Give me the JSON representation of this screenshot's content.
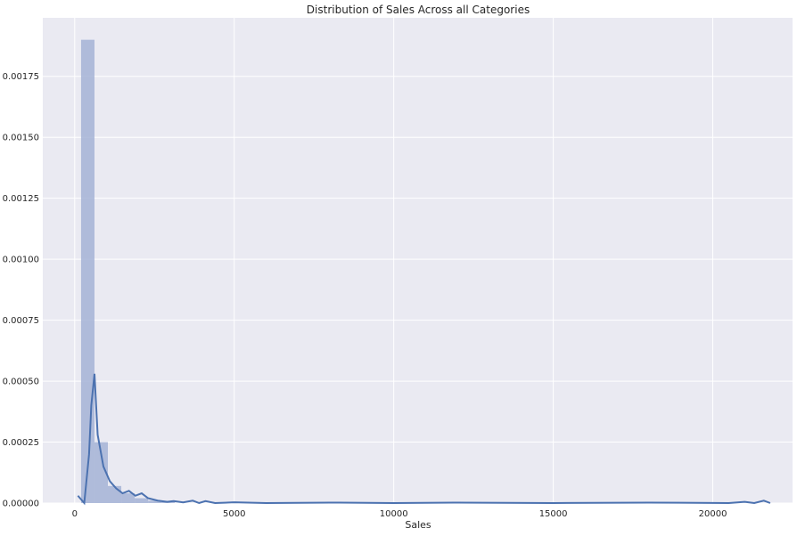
{
  "chart_data": {
    "type": "histogram",
    "title": "Distribution of Sales Across all Categories",
    "xlabel": "Sales",
    "ylabel": "",
    "xlim": [
      -1000,
      22500
    ],
    "ylim": [
      0,
      0.00199
    ],
    "grid": true,
    "x_ticks": [
      0,
      5000,
      10000,
      15000,
      20000
    ],
    "x_tick_labels": [
      "0",
      "5000",
      "10000",
      "15000",
      "20000"
    ],
    "y_ticks": [
      0,
      0.00025,
      0.0005,
      0.00075,
      0.001,
      0.00125,
      0.0015,
      0.00175
    ],
    "y_tick_labels": [
      "0.00000",
      "0.00025",
      "0.00050",
      "0.00075",
      "0.00100",
      "0.00125",
      "0.00150",
      "0.00175"
    ],
    "series": [
      {
        "kind": "histogram",
        "color": "#a5b3d6",
        "bins": [
          {
            "x0": 200,
            "x1": 620,
            "y": 0.0019
          },
          {
            "x0": 620,
            "x1": 1040,
            "y": 0.00025
          },
          {
            "x0": 1040,
            "x1": 1460,
            "y": 7e-05
          },
          {
            "x0": 1460,
            "x1": 1880,
            "y": 4e-05
          },
          {
            "x0": 1880,
            "x1": 2300,
            "y": 2e-05
          },
          {
            "x0": 2300,
            "x1": 2720,
            "y": 1e-05
          },
          {
            "x0": 2720,
            "x1": 3140,
            "y": 5e-06
          }
        ]
      },
      {
        "kind": "kde",
        "color": "#4c72b0",
        "points": [
          [
            100,
            3e-05
          ],
          [
            300,
            0.0
          ],
          [
            450,
            0.0002
          ],
          [
            520,
            0.0004
          ],
          [
            620,
            0.00053
          ],
          [
            720,
            0.00028
          ],
          [
            900,
            0.00015
          ],
          [
            1100,
            9e-05
          ],
          [
            1300,
            6e-05
          ],
          [
            1500,
            4e-05
          ],
          [
            1700,
            5e-05
          ],
          [
            1900,
            3e-05
          ],
          [
            2100,
            4e-05
          ],
          [
            2300,
            2e-05
          ],
          [
            2600,
            1e-05
          ],
          [
            2900,
            5e-06
          ],
          [
            3100,
            8e-06
          ],
          [
            3400,
            3e-06
          ],
          [
            3700,
            1e-05
          ],
          [
            3900,
            0.0
          ],
          [
            4100,
            8e-06
          ],
          [
            4400,
            0.0
          ],
          [
            5000,
            3e-06
          ],
          [
            6000,
            0.0
          ],
          [
            8000,
            2e-06
          ],
          [
            10000,
            0.0
          ],
          [
            12000,
            2e-06
          ],
          [
            15000,
            0.0
          ],
          [
            18000,
            2e-06
          ],
          [
            20500,
            0.0
          ],
          [
            21000,
            5e-06
          ],
          [
            21300,
            0.0
          ],
          [
            21600,
            1e-05
          ],
          [
            21800,
            0.0
          ]
        ]
      }
    ]
  }
}
